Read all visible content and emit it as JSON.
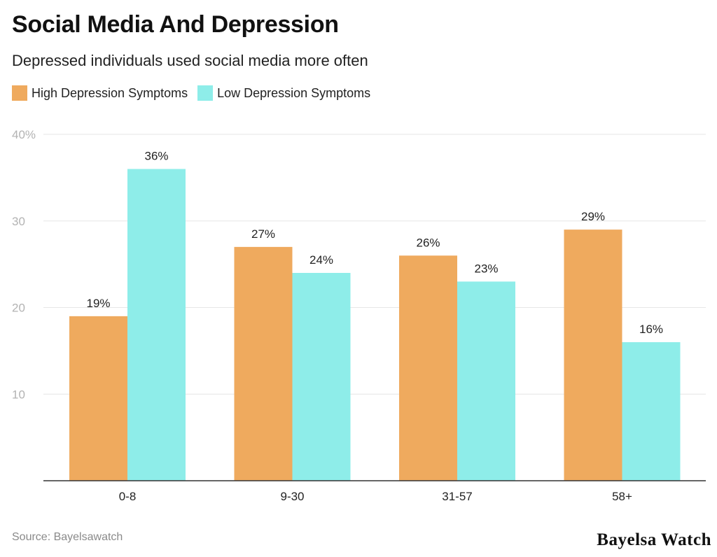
{
  "title": "Social Media And Depression",
  "subtitle": "Depressed individuals used social media more often",
  "source": "Source: Bayelsawatch",
  "brand": "Bayelsa Watch",
  "chart_data": {
    "type": "bar",
    "categories": [
      "0-8",
      "9-30",
      "31-57",
      "58+"
    ],
    "series": [
      {
        "name": "High Depression Symptoms",
        "color": "#EFAA5E",
        "values": [
          19,
          27,
          26,
          29
        ],
        "labels": [
          "19%",
          "27%",
          "26%",
          "29%"
        ]
      },
      {
        "name": "Low Depression Symptoms",
        "color": "#8EEDE9",
        "values": [
          36,
          24,
          23,
          16
        ],
        "labels": [
          "36%",
          "24%",
          "23%",
          "16%"
        ]
      }
    ],
    "ylim": [
      0,
      40
    ],
    "yticks": [
      {
        "value": 10,
        "label": "10"
      },
      {
        "value": 20,
        "label": "20"
      },
      {
        "value": 30,
        "label": "30"
      },
      {
        "value": 40,
        "label": "40%"
      }
    ],
    "xlabel": "",
    "ylabel": "",
    "grid": true,
    "legend_position": "top-left"
  }
}
